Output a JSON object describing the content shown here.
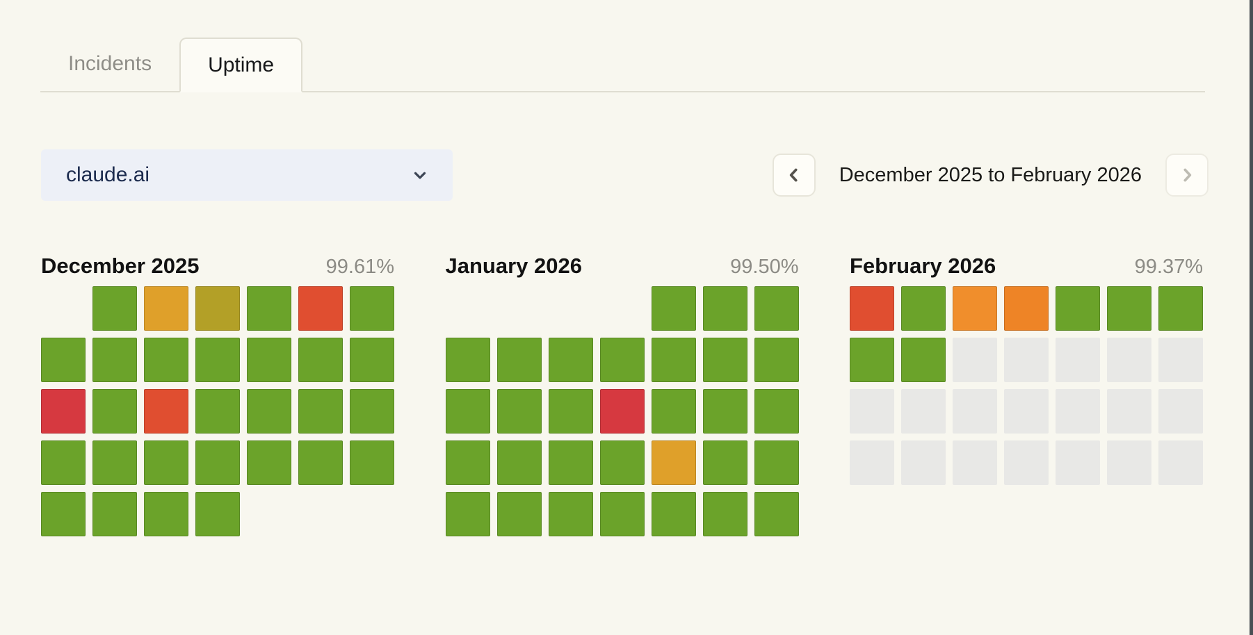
{
  "tabs": {
    "items": [
      {
        "label": "Incidents",
        "active": false
      },
      {
        "label": "Uptime",
        "active": true
      }
    ]
  },
  "service_selector": {
    "value": "claude.ai",
    "icon": "chevron-down-icon"
  },
  "range_nav": {
    "label": "December 2025 to February 2026",
    "prev": {
      "icon": "chevron-left-icon",
      "enabled": true
    },
    "next": {
      "icon": "chevron-right-icon",
      "enabled": false
    }
  },
  "palette": {
    "ok": "#6ba32a",
    "warn_amber": "#dfa02a",
    "warn_olive": "#b3a027",
    "warn_orange": "#f08e2c",
    "warn_orange_deep": "#ee8426",
    "err_orangered": "#e04e30",
    "err_red": "#d63940",
    "future": "#e8e8e6",
    "none": "transparent"
  },
  "months": [
    {
      "name": "December 2025",
      "uptime": "99.61%",
      "weeks": [
        [
          "none",
          "ok",
          "warn_amber",
          "warn_olive",
          "ok",
          "err_orangered",
          "ok"
        ],
        [
          "ok",
          "ok",
          "ok",
          "ok",
          "ok",
          "ok",
          "ok"
        ],
        [
          "err_red",
          "ok",
          "err_orangered",
          "ok",
          "ok",
          "ok",
          "ok"
        ],
        [
          "ok",
          "ok",
          "ok",
          "ok",
          "ok",
          "ok",
          "ok"
        ],
        [
          "ok",
          "ok",
          "ok",
          "ok",
          "none",
          "none",
          "none"
        ]
      ]
    },
    {
      "name": "January 2026",
      "uptime": "99.50%",
      "weeks": [
        [
          "none",
          "none",
          "none",
          "none",
          "ok",
          "ok",
          "ok"
        ],
        [
          "ok",
          "ok",
          "ok",
          "ok",
          "ok",
          "ok",
          "ok"
        ],
        [
          "ok",
          "ok",
          "ok",
          "err_red",
          "ok",
          "ok",
          "ok"
        ],
        [
          "ok",
          "ok",
          "ok",
          "ok",
          "warn_amber",
          "ok",
          "ok"
        ],
        [
          "ok",
          "ok",
          "ok",
          "ok",
          "ok",
          "ok",
          "ok"
        ]
      ]
    },
    {
      "name": "February 2026",
      "uptime": "99.37%",
      "weeks": [
        [
          "err_orangered",
          "ok",
          "warn_orange",
          "warn_orange_deep",
          "ok",
          "ok",
          "ok"
        ],
        [
          "ok",
          "ok",
          "future",
          "future",
          "future",
          "future",
          "future"
        ],
        [
          "future",
          "future",
          "future",
          "future",
          "future",
          "future",
          "future"
        ],
        [
          "future",
          "future",
          "future",
          "future",
          "future",
          "future",
          "future"
        ]
      ]
    }
  ]
}
